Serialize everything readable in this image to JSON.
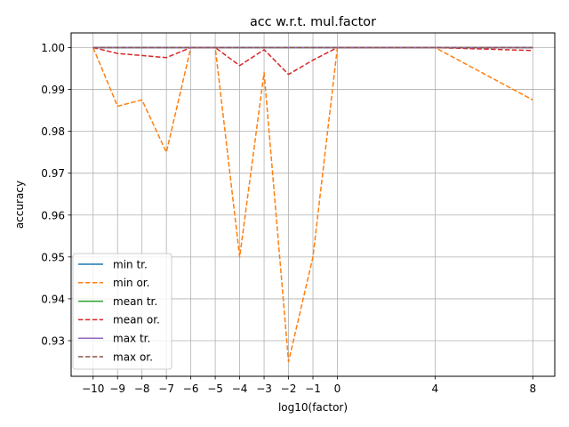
{
  "chart_data": {
    "type": "line",
    "title": "acc w.r.t. mul.factor",
    "xlabel": "log10(factor)",
    "ylabel": "accuracy",
    "x": [
      -10,
      -9,
      -8,
      -7,
      -6,
      -5,
      -4,
      -3,
      -2,
      -1,
      0,
      4,
      8
    ],
    "xticks": [
      "−10",
      "−9",
      "−8",
      "−7",
      "−6",
      "−5",
      "−4",
      "−3",
      "−2",
      "−1",
      "0",
      "4",
      "8"
    ],
    "yticks": [
      "0.93",
      "0.94",
      "0.95",
      "0.96",
      "0.97",
      "0.98",
      "0.99",
      "1.00"
    ],
    "xlim": [
      -10.9,
      8.9
    ],
    "ylim": [
      0.9215,
      1.0035
    ],
    "grid": true,
    "legend_position": "lower-left",
    "series": [
      {
        "name": "min tr.",
        "color": "#1f77b4",
        "dash": "solid",
        "values": [
          1.0,
          1.0,
          1.0,
          1.0,
          1.0,
          1.0,
          1.0,
          1.0,
          1.0,
          1.0,
          1.0,
          1.0,
          1.0
        ]
      },
      {
        "name": "min or.",
        "color": "#ff7f0e",
        "dash": "dashed",
        "values": [
          1.0,
          0.986,
          0.9875,
          0.975,
          1.0,
          1.0,
          0.95,
          0.994,
          0.925,
          0.95,
          1.0,
          1.0,
          0.9875
        ]
      },
      {
        "name": "mean tr.",
        "color": "#2ca02c",
        "dash": "solid",
        "values": [
          1.0,
          1.0,
          1.0,
          1.0,
          1.0,
          1.0,
          1.0,
          1.0,
          1.0,
          1.0,
          1.0,
          1.0,
          1.0
        ]
      },
      {
        "name": "mean or.",
        "color": "#d62728",
        "dash": "dashed",
        "values": [
          1.0,
          0.9986,
          0.9981,
          0.9976,
          1.0,
          1.0,
          0.9957,
          0.9995,
          0.9936,
          0.997,
          1.0,
          1.0,
          0.9993
        ]
      },
      {
        "name": "max tr.",
        "color": "#9467bd",
        "dash": "solid",
        "values": [
          1.0,
          1.0,
          1.0,
          1.0,
          1.0,
          1.0,
          1.0,
          1.0,
          1.0,
          1.0,
          1.0,
          1.0,
          1.0
        ]
      },
      {
        "name": "max or.",
        "color": "#8c564b",
        "dash": "dashed",
        "values": [
          1.0,
          1.0,
          1.0,
          1.0,
          1.0,
          1.0,
          1.0,
          1.0,
          1.0,
          1.0,
          1.0,
          1.0,
          1.0
        ]
      }
    ]
  }
}
